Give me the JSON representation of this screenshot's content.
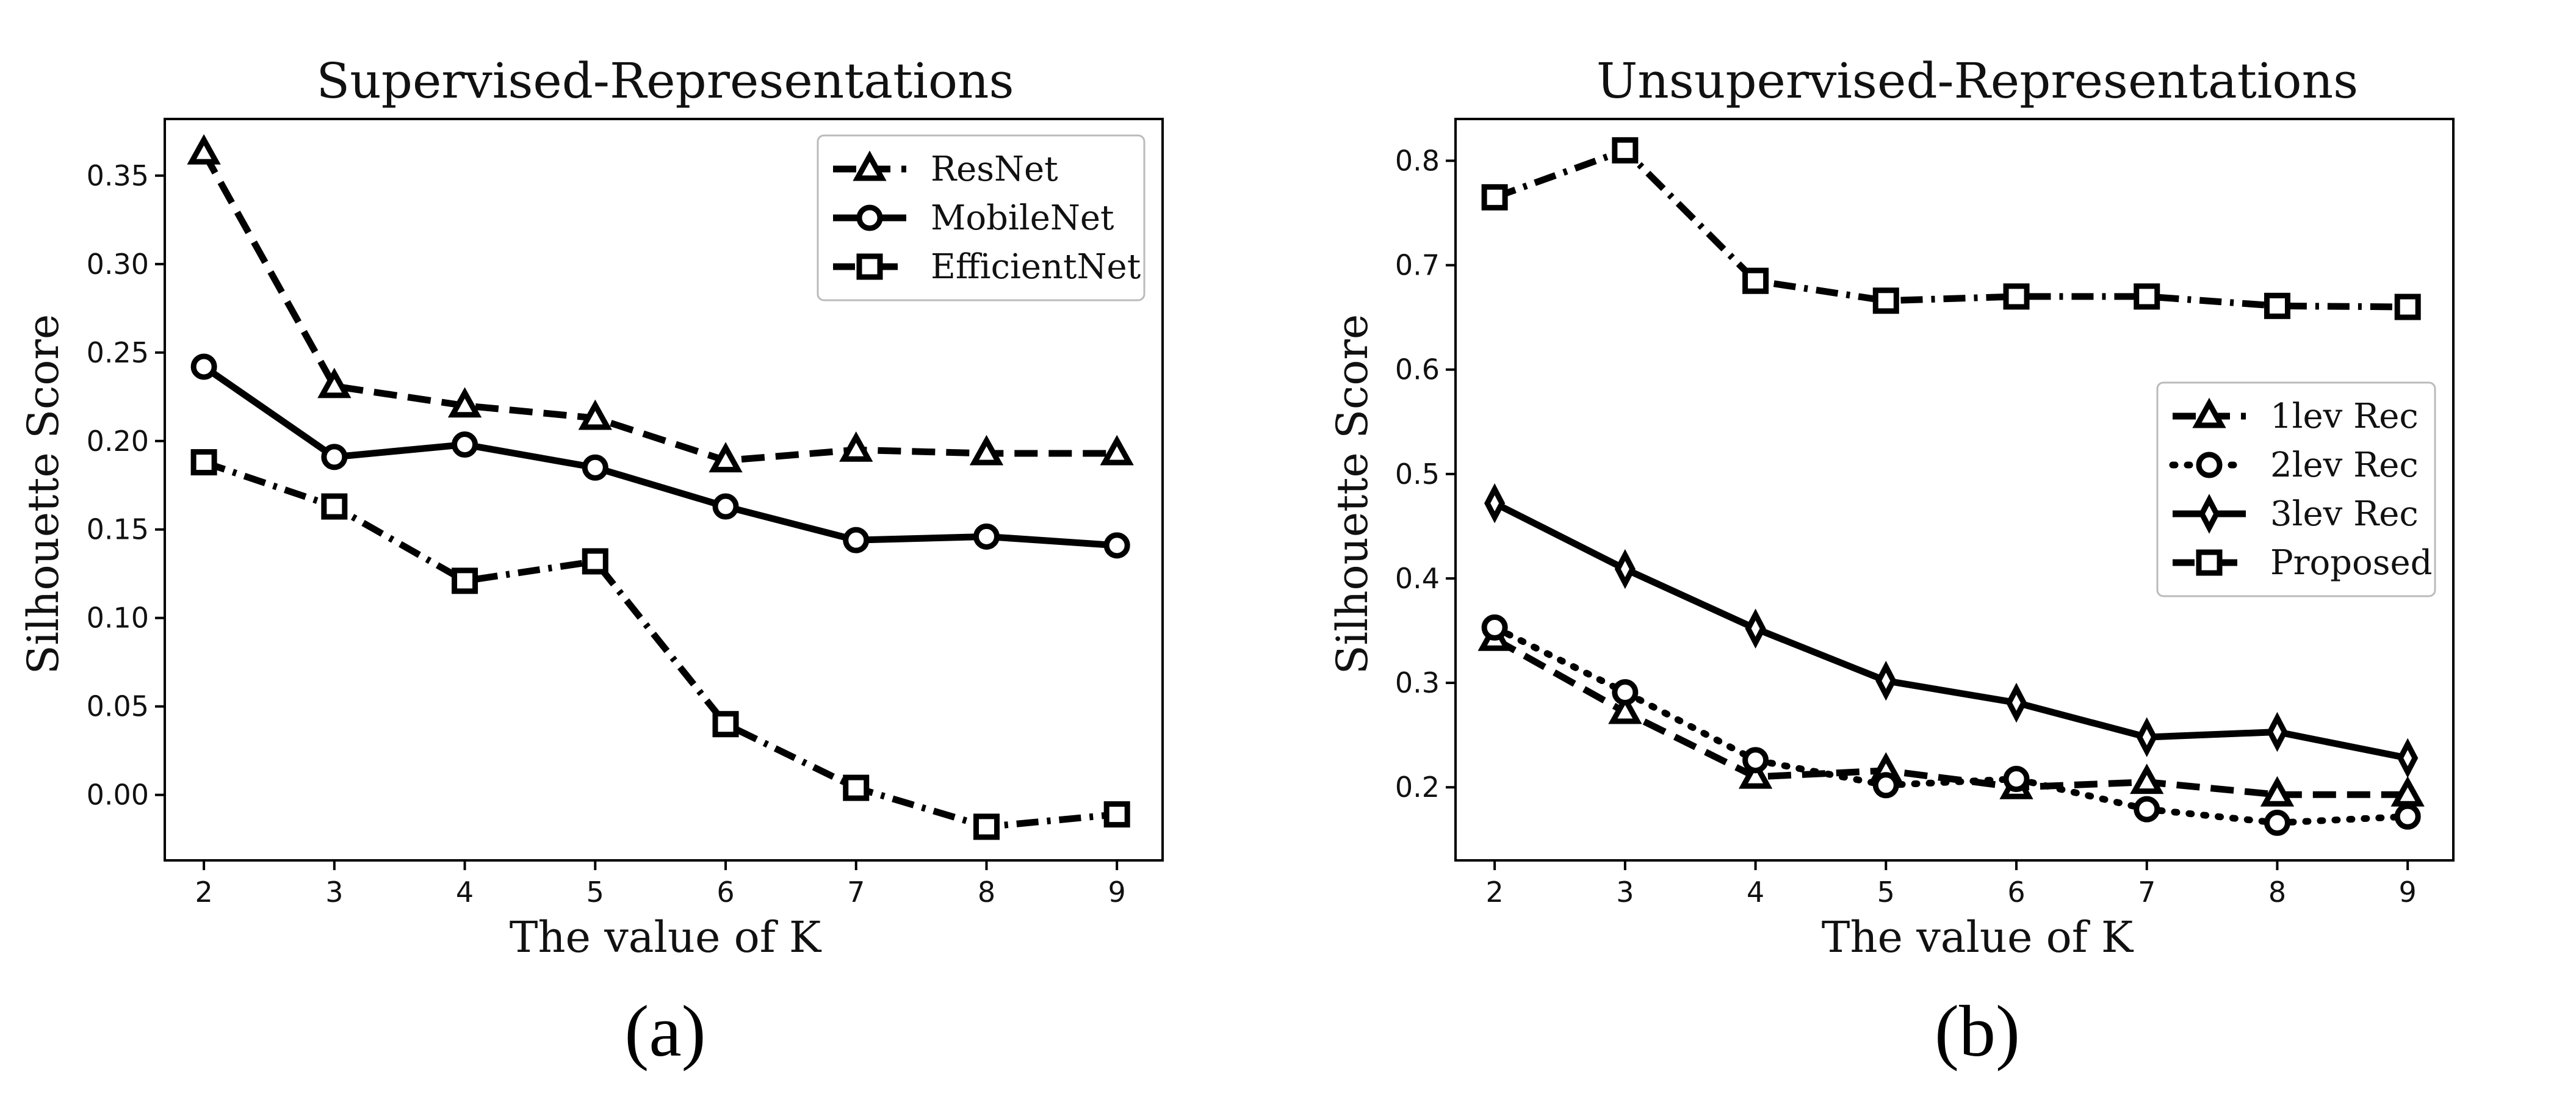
{
  "chart_data": [
    {
      "id": "a",
      "type": "line",
      "title": "Supervised-Representations",
      "xlabel": "The value of K",
      "ylabel": "Silhouette Score",
      "caption": "(a)",
      "x": [
        2,
        3,
        4,
        5,
        6,
        7,
        8,
        9
      ],
      "xlim": [
        1.7,
        9.35
      ],
      "ylim": [
        -0.037,
        0.382
      ],
      "yticks": [
        0.0,
        0.05,
        0.1,
        0.15,
        0.2,
        0.25,
        0.3,
        0.35
      ],
      "ytick_labels": [
        "0.00",
        "0.05",
        "0.10",
        "0.15",
        "0.20",
        "0.25",
        "0.30",
        "0.35"
      ],
      "xtick_labels": [
        "2",
        "3",
        "4",
        "5",
        "6",
        "7",
        "8",
        "9"
      ],
      "legend_position": "top-right",
      "grid": false,
      "series": [
        {
          "name": "ResNet",
          "marker": "triangle",
          "dash": "dashed",
          "values": [
            0.363,
            0.231,
            0.22,
            0.213,
            0.189,
            0.195,
            0.193,
            0.193
          ]
        },
        {
          "name": "MobileNet",
          "marker": "circle",
          "dash": "solid",
          "values": [
            0.242,
            0.191,
            0.198,
            0.185,
            0.163,
            0.144,
            0.146,
            0.141
          ]
        },
        {
          "name": "EfficientNet",
          "marker": "square",
          "dash": "dashdot",
          "values": [
            0.188,
            0.163,
            0.121,
            0.132,
            0.04,
            0.004,
            -0.018,
            -0.011
          ]
        }
      ]
    },
    {
      "id": "b",
      "type": "line",
      "title": "Unsupervised-Representations",
      "xlabel": "The value of K",
      "ylabel": "Silhouette Score",
      "caption": "(b)",
      "x": [
        2,
        3,
        4,
        5,
        6,
        7,
        8,
        9
      ],
      "xlim": [
        1.7,
        9.35
      ],
      "ylim": [
        0.13,
        0.84
      ],
      "yticks": [
        0.2,
        0.3,
        0.4,
        0.5,
        0.6,
        0.7,
        0.8
      ],
      "ytick_labels": [
        "0.2",
        "0.3",
        "0.4",
        "0.5",
        "0.6",
        "0.7",
        "0.8"
      ],
      "xtick_labels": [
        "2",
        "3",
        "4",
        "5",
        "6",
        "7",
        "8",
        "9"
      ],
      "legend_position": "center-right",
      "grid": false,
      "series": [
        {
          "name": "1lev Rec",
          "marker": "triangle",
          "dash": "dashed",
          "values": [
            0.342,
            0.272,
            0.21,
            0.216,
            0.2,
            0.205,
            0.193,
            0.193
          ]
        },
        {
          "name": "2lev Rec",
          "marker": "circle",
          "dash": "dotted",
          "values": [
            0.353,
            0.291,
            0.226,
            0.202,
            0.208,
            0.179,
            0.166,
            0.172
          ]
        },
        {
          "name": "3lev Rec",
          "marker": "diamond",
          "dash": "solid",
          "values": [
            0.472,
            0.409,
            0.352,
            0.302,
            0.281,
            0.248,
            0.253,
            0.228
          ]
        },
        {
          "name": "Proposed",
          "marker": "square",
          "dash": "dashdot",
          "values": [
            0.765,
            0.81,
            0.685,
            0.666,
            0.67,
            0.67,
            0.661,
            0.66
          ]
        }
      ]
    }
  ]
}
